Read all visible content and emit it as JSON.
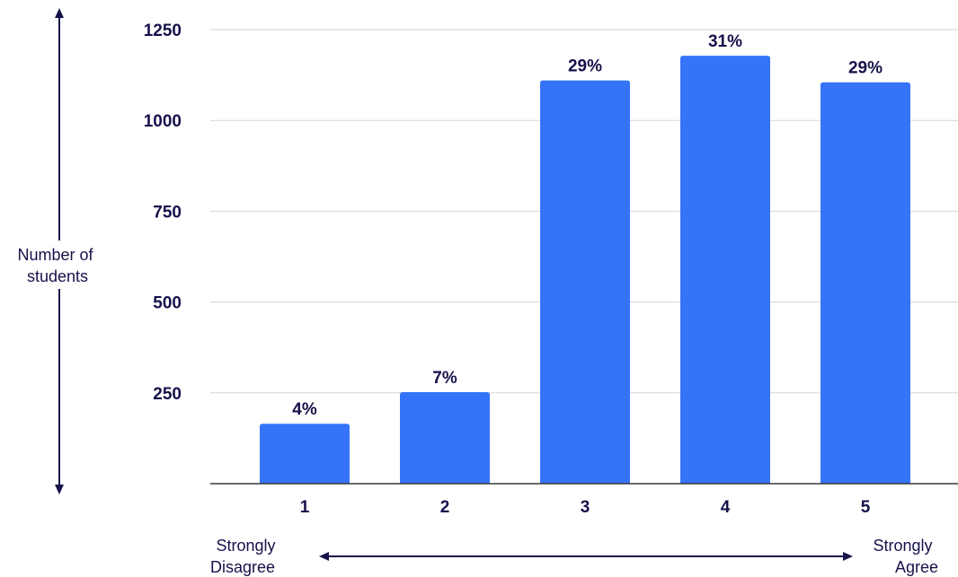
{
  "chart_data": {
    "type": "bar",
    "categories": [
      "1",
      "2",
      "3",
      "4",
      "5"
    ],
    "values": [
      165,
      252,
      1110,
      1178,
      1105
    ],
    "data_labels": [
      "4%",
      "7%",
      "29%",
      "31%",
      "29%"
    ],
    "ylabel_lines": [
      "Number of",
      "students"
    ],
    "x_scale_left_lines": [
      "Strongly",
      "Disagree"
    ],
    "x_scale_right_lines": [
      "Strongly",
      "Agree"
    ],
    "yticks": [
      250,
      500,
      750,
      1000,
      1250
    ],
    "ylim": [
      0,
      1250
    ],
    "grid": true,
    "colors": {
      "bar": "#3574f9",
      "text": "#16124a",
      "grid": "#d6d6d6",
      "axis": "#3a3a3a"
    }
  }
}
